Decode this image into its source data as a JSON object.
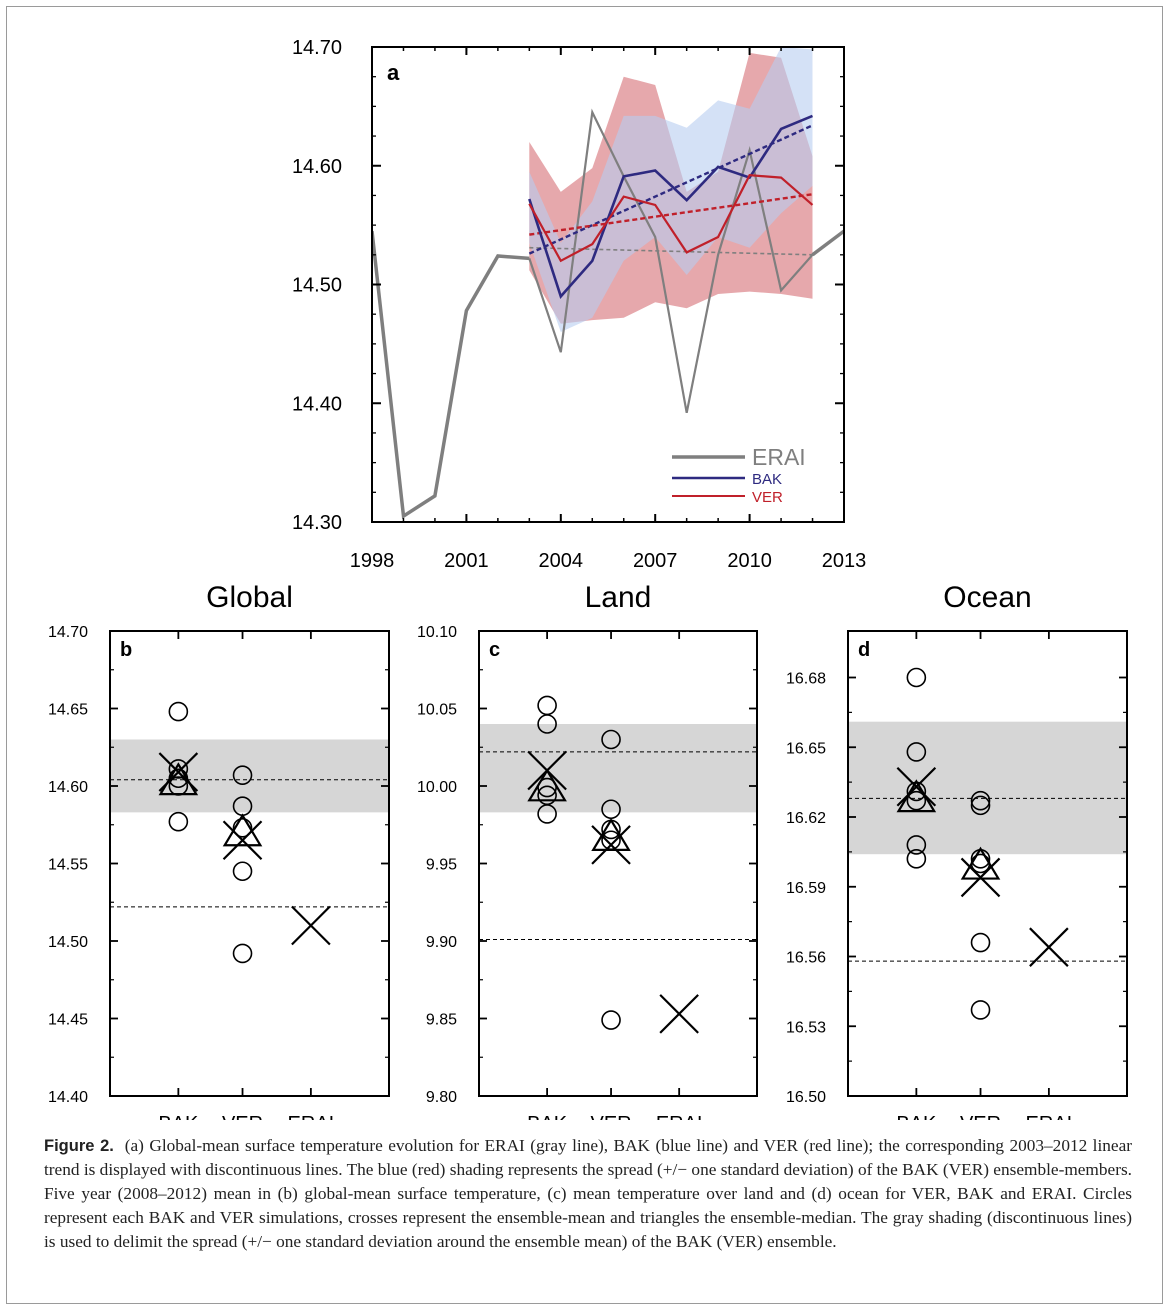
{
  "figure": {
    "caption_label": "Figure 2.",
    "caption_text": "(a) Global-mean surface temperature evolution for ERAI (gray line), BAK (blue line) and VER (red line); the corresponding 2003–2012 linear trend is displayed with discontinuous lines. The blue (red) shading represents the spread (+/− one standard deviation) of the BAK (VER) ensemble-members. Five year (2008–2012) mean in (b) global-mean surface temperature, (c) mean temperature over land and (d) ocean for VER, BAK and ERAI. Circles represent each BAK and VER simulations, crosses represent the ensemble-mean and triangles the ensemble-median. The gray shading (discontinuous lines) is used to delimit the spread (+/− one standard deviation around the ensemble mean) of the BAK (VER) ensemble."
  },
  "colors": {
    "erai": "#7f7f7f",
    "bak": "#2e2a80",
    "ver": "#c0202a",
    "bak_shade": "#b7cdf0",
    "ver_shade": "#d87a80",
    "gray_shade": "#d6d6d6"
  },
  "chart_data": [
    {
      "panel": "a",
      "type": "line",
      "xlim": [
        1998,
        2013
      ],
      "ylim": [
        14.3,
        14.7
      ],
      "x_ticks": [
        "1998",
        "2001",
        "2004",
        "2007",
        "2010",
        "2013"
      ],
      "y_ticks": [
        "14.30",
        "14.40",
        "14.50",
        "14.60",
        "14.70"
      ],
      "legend": [
        "ERAI",
        "BAK",
        "VER"
      ],
      "legend_position": "bottom-right",
      "series": [
        {
          "name": "ERAI",
          "x": [
            1998,
            1999,
            2000,
            2001,
            2002,
            2003,
            2004,
            2005,
            2006,
            2007,
            2008,
            2009,
            2010,
            2011,
            2012,
            2013
          ],
          "values": [
            14.545,
            14.305,
            14.322,
            14.478,
            14.524,
            14.522,
            14.443,
            14.645,
            14.591,
            14.54,
            14.392,
            14.525,
            14.613,
            14.495,
            14.525,
            14.545
          ]
        },
        {
          "name": "BAK",
          "x": [
            2003,
            2004,
            2005,
            2006,
            2007,
            2008,
            2009,
            2010,
            2011,
            2012
          ],
          "values": [
            14.572,
            14.49,
            14.52,
            14.591,
            14.596,
            14.571,
            14.599,
            14.59,
            14.631,
            14.642
          ]
        },
        {
          "name": "VER",
          "x": [
            2003,
            2004,
            2005,
            2006,
            2007,
            2008,
            2009,
            2010,
            2011,
            2012
          ],
          "values": [
            14.568,
            14.52,
            14.534,
            14.574,
            14.567,
            14.527,
            14.54,
            14.592,
            14.59,
            14.567
          ]
        }
      ],
      "trends": [
        {
          "name": "ERAI",
          "x": [
            2003,
            2012
          ],
          "values": [
            14.531,
            14.525
          ]
        },
        {
          "name": "BAK",
          "x": [
            2003,
            2012
          ],
          "values": [
            14.526,
            14.634
          ]
        },
        {
          "name": "VER",
          "x": [
            2003,
            2012
          ],
          "values": [
            14.542,
            14.576
          ]
        }
      ],
      "bands": [
        {
          "name": "BAK",
          "x": [
            2003,
            2004,
            2005,
            2006,
            2007,
            2008,
            2009,
            2010,
            2011,
            2012
          ],
          "upper": [
            14.595,
            14.535,
            14.57,
            14.642,
            14.642,
            14.632,
            14.655,
            14.648,
            14.7,
            14.698
          ],
          "lower": [
            14.535,
            14.46,
            14.472,
            14.52,
            14.54,
            14.508,
            14.54,
            14.531,
            14.56,
            14.583
          ]
        },
        {
          "name": "VER",
          "x": [
            2003,
            2004,
            2005,
            2006,
            2007,
            2008,
            2009,
            2010,
            2011,
            2012
          ],
          "upper": [
            14.62,
            14.578,
            14.598,
            14.675,
            14.668,
            14.578,
            14.595,
            14.695,
            14.691,
            14.608
          ]
        },
        {
          "name": "VER_lower",
          "x": [
            2003,
            2004,
            2005,
            2006,
            2007,
            2008,
            2009,
            2010,
            2011,
            2012
          ],
          "values": [
            14.512,
            14.467,
            14.47,
            14.472,
            14.485,
            14.48,
            14.492,
            14.494,
            14.492,
            14.488
          ]
        }
      ]
    },
    {
      "panel": "b",
      "title": "Global",
      "type": "scatter",
      "categories": [
        "BAK",
        "VER",
        "ERAI"
      ],
      "ylim": [
        14.4,
        14.7
      ],
      "y_ticks": [
        "14.40",
        "14.45",
        "14.50",
        "14.55",
        "14.60",
        "14.65",
        "14.70"
      ],
      "members": {
        "BAK": [
          14.648,
          14.611,
          14.605,
          14.6,
          14.577
        ],
        "VER": [
          14.607,
          14.587,
          14.573,
          14.545,
          14.492
        ]
      },
      "means": {
        "BAK": 14.609,
        "VER": 14.565,
        "ERAI": 14.51
      },
      "medians": {
        "BAK": 14.603,
        "VER": 14.57
      },
      "spread_band": [
        14.583,
        14.63
      ],
      "dashed_lines": [
        14.604,
        14.522
      ]
    },
    {
      "panel": "c",
      "title": "Land",
      "type": "scatter",
      "categories": [
        "BAK",
        "VER",
        "ERAI"
      ],
      "ylim": [
        9.8,
        10.1
      ],
      "y_ticks": [
        "9.80",
        "9.85",
        "9.90",
        "9.95",
        "10.00",
        "10.05",
        "10.10"
      ],
      "members": {
        "BAK": [
          10.052,
          10.04,
          9.999,
          9.994,
          9.982
        ],
        "VER": [
          10.03,
          9.985,
          9.972,
          9.965,
          9.849
        ]
      },
      "means": {
        "BAK": 10.01,
        "VER": 9.962,
        "ERAI": 9.853
      },
      "medians": {
        "BAK": 9.999,
        "VER": 9.967
      },
      "spread_band": [
        9.983,
        10.04
      ],
      "dashed_lines": [
        10.022,
        9.901
      ]
    },
    {
      "panel": "d",
      "title": "Ocean",
      "type": "scatter",
      "categories": [
        "BAK",
        "VER",
        "ERAI"
      ],
      "ylim": [
        16.5,
        16.7
      ],
      "y_ticks": [
        "16.50",
        "16.53",
        "16.56",
        "16.59",
        "16.62",
        "16.65",
        "16.68"
      ],
      "members": {
        "BAK": [
          16.68,
          16.648,
          16.631,
          16.627,
          16.608,
          16.602
        ],
        "VER": [
          16.627,
          16.625,
          16.602,
          16.6,
          16.566,
          16.537
        ]
      },
      "means": {
        "BAK": 16.633,
        "VER": 16.594,
        "ERAI": 16.564
      },
      "medians": {
        "BAK": 16.628,
        "VER": 16.599
      },
      "spread_band": [
        16.604,
        16.661
      ],
      "dashed_lines": [
        16.628,
        16.558
      ]
    }
  ]
}
